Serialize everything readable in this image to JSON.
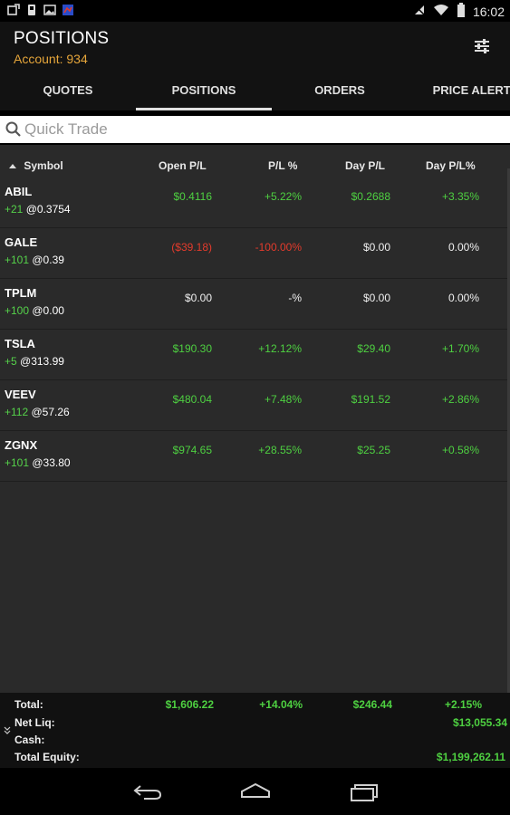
{
  "status_bar": {
    "time": "16:02",
    "left_icons": [
      "notification-icon",
      "sim-icon",
      "image-icon",
      "app-icon"
    ],
    "right_icons": [
      "signal-icon",
      "wifi-icon",
      "battery-icon"
    ]
  },
  "header": {
    "title": "POSITIONS",
    "account": "Account: 934",
    "settings_icon": "sliders-icon"
  },
  "tabs": [
    {
      "label": "QUOTES",
      "active": false
    },
    {
      "label": "POSITIONS",
      "active": true
    },
    {
      "label": "ORDERS",
      "active": false
    },
    {
      "label": "PRICE ALERTS",
      "active": false
    }
  ],
  "quick_trade": {
    "placeholder": "Quick Trade",
    "icon": "search-icon"
  },
  "table": {
    "columns": [
      "Symbol",
      "Open P/L",
      "P/L %",
      "Day P/L",
      "Day P/L%"
    ],
    "rows": [
      {
        "symbol": "ABIL",
        "qty": "+21",
        "price": "@0.3754",
        "open_pl": "$0.4116",
        "pl_pct": "+5.22%",
        "day_pl": "$0.2688",
        "day_pl_pct": "+3.35%"
      },
      {
        "symbol": "GALE",
        "qty": "+101",
        "price": "@0.39",
        "open_pl": "($39.18)",
        "pl_pct": "-100.00%",
        "day_pl": "$0.00",
        "day_pl_pct": "0.00%"
      },
      {
        "symbol": "TPLM",
        "qty": "+100",
        "price": "@0.00",
        "open_pl": "$0.00",
        "pl_pct": "-%",
        "day_pl": "$0.00",
        "day_pl_pct": "0.00%"
      },
      {
        "symbol": "TSLA",
        "qty": "+5",
        "price": "@313.99",
        "open_pl": "$190.30",
        "pl_pct": "+12.12%",
        "day_pl": "$29.40",
        "day_pl_pct": "+1.70%"
      },
      {
        "symbol": "VEEV",
        "qty": "+112",
        "price": "@57.26",
        "open_pl": "$480.04",
        "pl_pct": "+7.48%",
        "day_pl": "$191.52",
        "day_pl_pct": "+2.86%"
      },
      {
        "symbol": "ZGNX",
        "qty": "+101",
        "price": "@33.80",
        "open_pl": "$974.65",
        "pl_pct": "+28.55%",
        "day_pl": "$25.25",
        "day_pl_pct": "+0.58%"
      }
    ]
  },
  "footer": {
    "total_label": "Total:",
    "total_open_pl": "$1,606.22",
    "total_pl_pct": "+14.04%",
    "total_day_pl": "$246.44",
    "total_day_pl_pct": "+2.15%",
    "net_liq_label": "Net Liq:",
    "net_liq": "$13,055.34",
    "cash_label": "Cash:",
    "total_equity_label": "Total Equity:",
    "total_equity": "$1,199,262.11"
  },
  "colors": {
    "positive": "#4ed041",
    "negative": "#e33b2c",
    "accent": "#e5a53a"
  }
}
